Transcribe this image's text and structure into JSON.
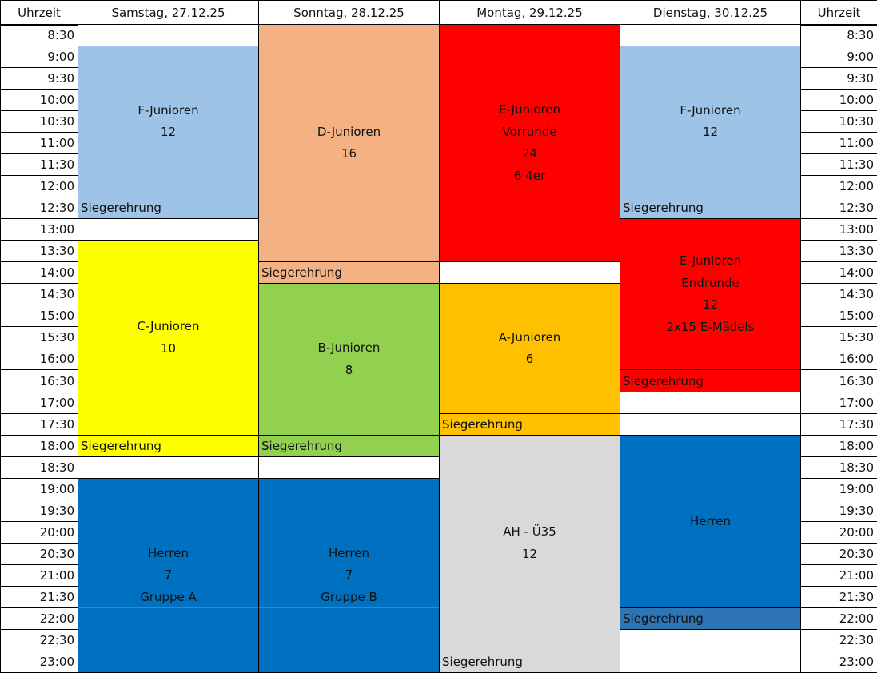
{
  "header": {
    "time_label_left": "Uhrzeit",
    "time_label_right": "Uhrzeit",
    "days": [
      "Samstag, 27.12.25",
      "Sonntag, 28.12.25",
      "Montag, 29.12.25",
      "Dienstag, 30.12.25"
    ]
  },
  "times": [
    "8:30",
    "9:00",
    "9:30",
    "10:00",
    "10:30",
    "11:00",
    "11:30",
    "12:00",
    "12:30",
    "13:00",
    "13:30",
    "14:00",
    "14:30",
    "15:00",
    "15:30",
    "16:00",
    "16:30",
    "17:00",
    "17:30",
    "18:00",
    "18:30",
    "19:00",
    "19:30",
    "20:00",
    "20:30",
    "21:00",
    "21:30",
    "22:00",
    "22:30",
    "23:00"
  ],
  "colors": {
    "light_blue": "#9dc3e6",
    "salmon": "#f4b183",
    "red": "#ff0000",
    "yellow": "#ffff00",
    "green": "#92d050",
    "orange": "#ffc000",
    "gray": "#d9d9d9",
    "blue": "#0070c0",
    "dark_blue": "#2e75b6",
    "white": "#ffffff"
  },
  "schedule": [
    {
      "day": 0,
      "blocks": [
        {
          "start": "8:30",
          "end": "9:00",
          "color": "#ffffff",
          "lines": []
        },
        {
          "start": "9:00",
          "end": "12:30",
          "color": "#9dc3e6",
          "lines": [
            "F-Junioren",
            "12"
          ]
        },
        {
          "start": "12:30",
          "end": "13:00",
          "color": "#9dc3e6",
          "type": "sieger",
          "lines": [
            "Siegerehrung"
          ]
        },
        {
          "start": "13:00",
          "end": "13:30",
          "color": "#ffffff",
          "lines": []
        },
        {
          "start": "13:30",
          "end": "18:00",
          "color": "#ffff00",
          "lines": [
            "C-Junioren",
            "10"
          ]
        },
        {
          "start": "18:00",
          "end": "18:30",
          "color": "#ffff00",
          "type": "sieger",
          "lines": [
            "Siegerehrung"
          ]
        },
        {
          "start": "18:30",
          "end": "19:00",
          "color": "#ffffff",
          "lines": []
        },
        {
          "start": "19:00",
          "end": "23:30",
          "color": "#0070c0",
          "lines": [
            "Herren",
            "7",
            "Gruppe A"
          ]
        }
      ]
    },
    {
      "day": 1,
      "blocks": [
        {
          "start": "8:30",
          "end": "14:00",
          "color": "#f4b183",
          "lines": [
            "D-Junioren",
            "16"
          ]
        },
        {
          "start": "14:00",
          "end": "14:30",
          "color": "#f4b183",
          "type": "sieger",
          "lines": [
            "Siegerehrung"
          ]
        },
        {
          "start": "14:30",
          "end": "18:00",
          "color": "#92d050",
          "lines": [
            "B-Junioren",
            "8"
          ]
        },
        {
          "start": "18:00",
          "end": "18:30",
          "color": "#92d050",
          "type": "sieger",
          "lines": [
            "Siegerehrung"
          ]
        },
        {
          "start": "18:30",
          "end": "19:00",
          "color": "#ffffff",
          "lines": []
        },
        {
          "start": "19:00",
          "end": "23:30",
          "color": "#0070c0",
          "lines": [
            "Herren",
            "7",
            "Gruppe B"
          ]
        }
      ]
    },
    {
      "day": 2,
      "blocks": [
        {
          "start": "8:30",
          "end": "14:00",
          "color": "#ff0000",
          "lines": [
            "E-Junioren",
            "Vorrunde",
            "24",
            "6 4er"
          ]
        },
        {
          "start": "14:00",
          "end": "14:30",
          "color": "#ffffff",
          "lines": []
        },
        {
          "start": "14:30",
          "end": "17:30",
          "color": "#ffc000",
          "lines": [
            "A-Junioren",
            "6"
          ]
        },
        {
          "start": "17:30",
          "end": "18:00",
          "color": "#ffc000",
          "type": "sieger",
          "lines": [
            "Siegerehrung"
          ]
        },
        {
          "start": "18:00",
          "end": "23:00",
          "color": "#d9d9d9",
          "lines": [
            "AH - Ü35",
            "12"
          ]
        },
        {
          "start": "23:00",
          "end": "23:30",
          "color": "#d9d9d9",
          "type": "sieger",
          "lines": [
            "Siegerehrung"
          ]
        }
      ]
    },
    {
      "day": 3,
      "blocks": [
        {
          "start": "8:30",
          "end": "9:00",
          "color": "#ffffff",
          "lines": []
        },
        {
          "start": "9:00",
          "end": "12:30",
          "color": "#9dc3e6",
          "lines": [
            "F-Junioren",
            "12"
          ]
        },
        {
          "start": "12:30",
          "end": "13:00",
          "color": "#9dc3e6",
          "type": "sieger",
          "lines": [
            "Siegerehrung"
          ]
        },
        {
          "start": "13:00",
          "end": "16:30",
          "color": "#ff0000",
          "lines": [
            "E-Junioren",
            "Endrunde",
            "12",
            "2x15 E-Mädels"
          ]
        },
        {
          "start": "16:30",
          "end": "17:00",
          "color": "#ff0000",
          "type": "sieger",
          "lines": [
            "Siegerehrung"
          ]
        },
        {
          "start": "17:00",
          "end": "17:30",
          "color": "#ffffff",
          "lines": []
        },
        {
          "start": "17:30",
          "end": "18:00",
          "color": "#ffffff",
          "lines": []
        },
        {
          "start": "18:00",
          "end": "22:00",
          "color": "#0070c0",
          "lines": [
            "Herren"
          ]
        },
        {
          "start": "22:00",
          "end": "22:30",
          "color": "#2e75b6",
          "type": "sieger",
          "lines": [
            "Siegerehrung"
          ]
        },
        {
          "start": "22:30",
          "end": "23:30",
          "color": "#ffffff",
          "lines": []
        }
      ]
    }
  ]
}
